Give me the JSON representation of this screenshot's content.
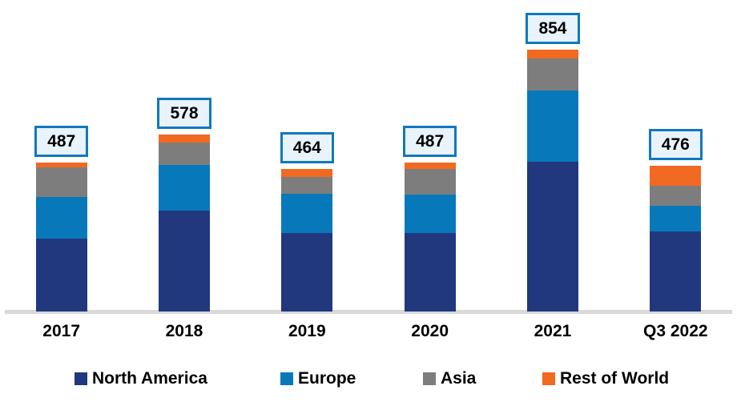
{
  "chart_data": {
    "type": "bar",
    "stacked": true,
    "title": "",
    "xlabel": "",
    "ylabel": "",
    "categories": [
      "2017",
      "2018",
      "2019",
      "2020",
      "2021",
      "Q3 2022"
    ],
    "series": [
      {
        "name": "North America",
        "color": "#21387E",
        "values": [
          238,
          329,
          257,
          256,
          488,
          260
        ]
      },
      {
        "name": "Europe",
        "color": "#0779BB",
        "values": [
          136,
          150,
          127,
          126,
          232,
          84
        ]
      },
      {
        "name": "Asia",
        "color": "#7D7D7D",
        "values": [
          97,
          73,
          55,
          84,
          105,
          66
        ]
      },
      {
        "name": "Rest of World",
        "color": "#F26921",
        "values": [
          16,
          26,
          25,
          21,
          29,
          66
        ]
      }
    ],
    "totals": [
      487,
      578,
      464,
      487,
      854,
      476
    ],
    "ylim": [
      0,
      900
    ],
    "grid": false,
    "legend_position": "bottom",
    "axis_line_color": "#D9D9D9",
    "total_label_style": {
      "fill": "#E8F3FC",
      "border": "#1178BE",
      "text_color": "#000000"
    }
  }
}
